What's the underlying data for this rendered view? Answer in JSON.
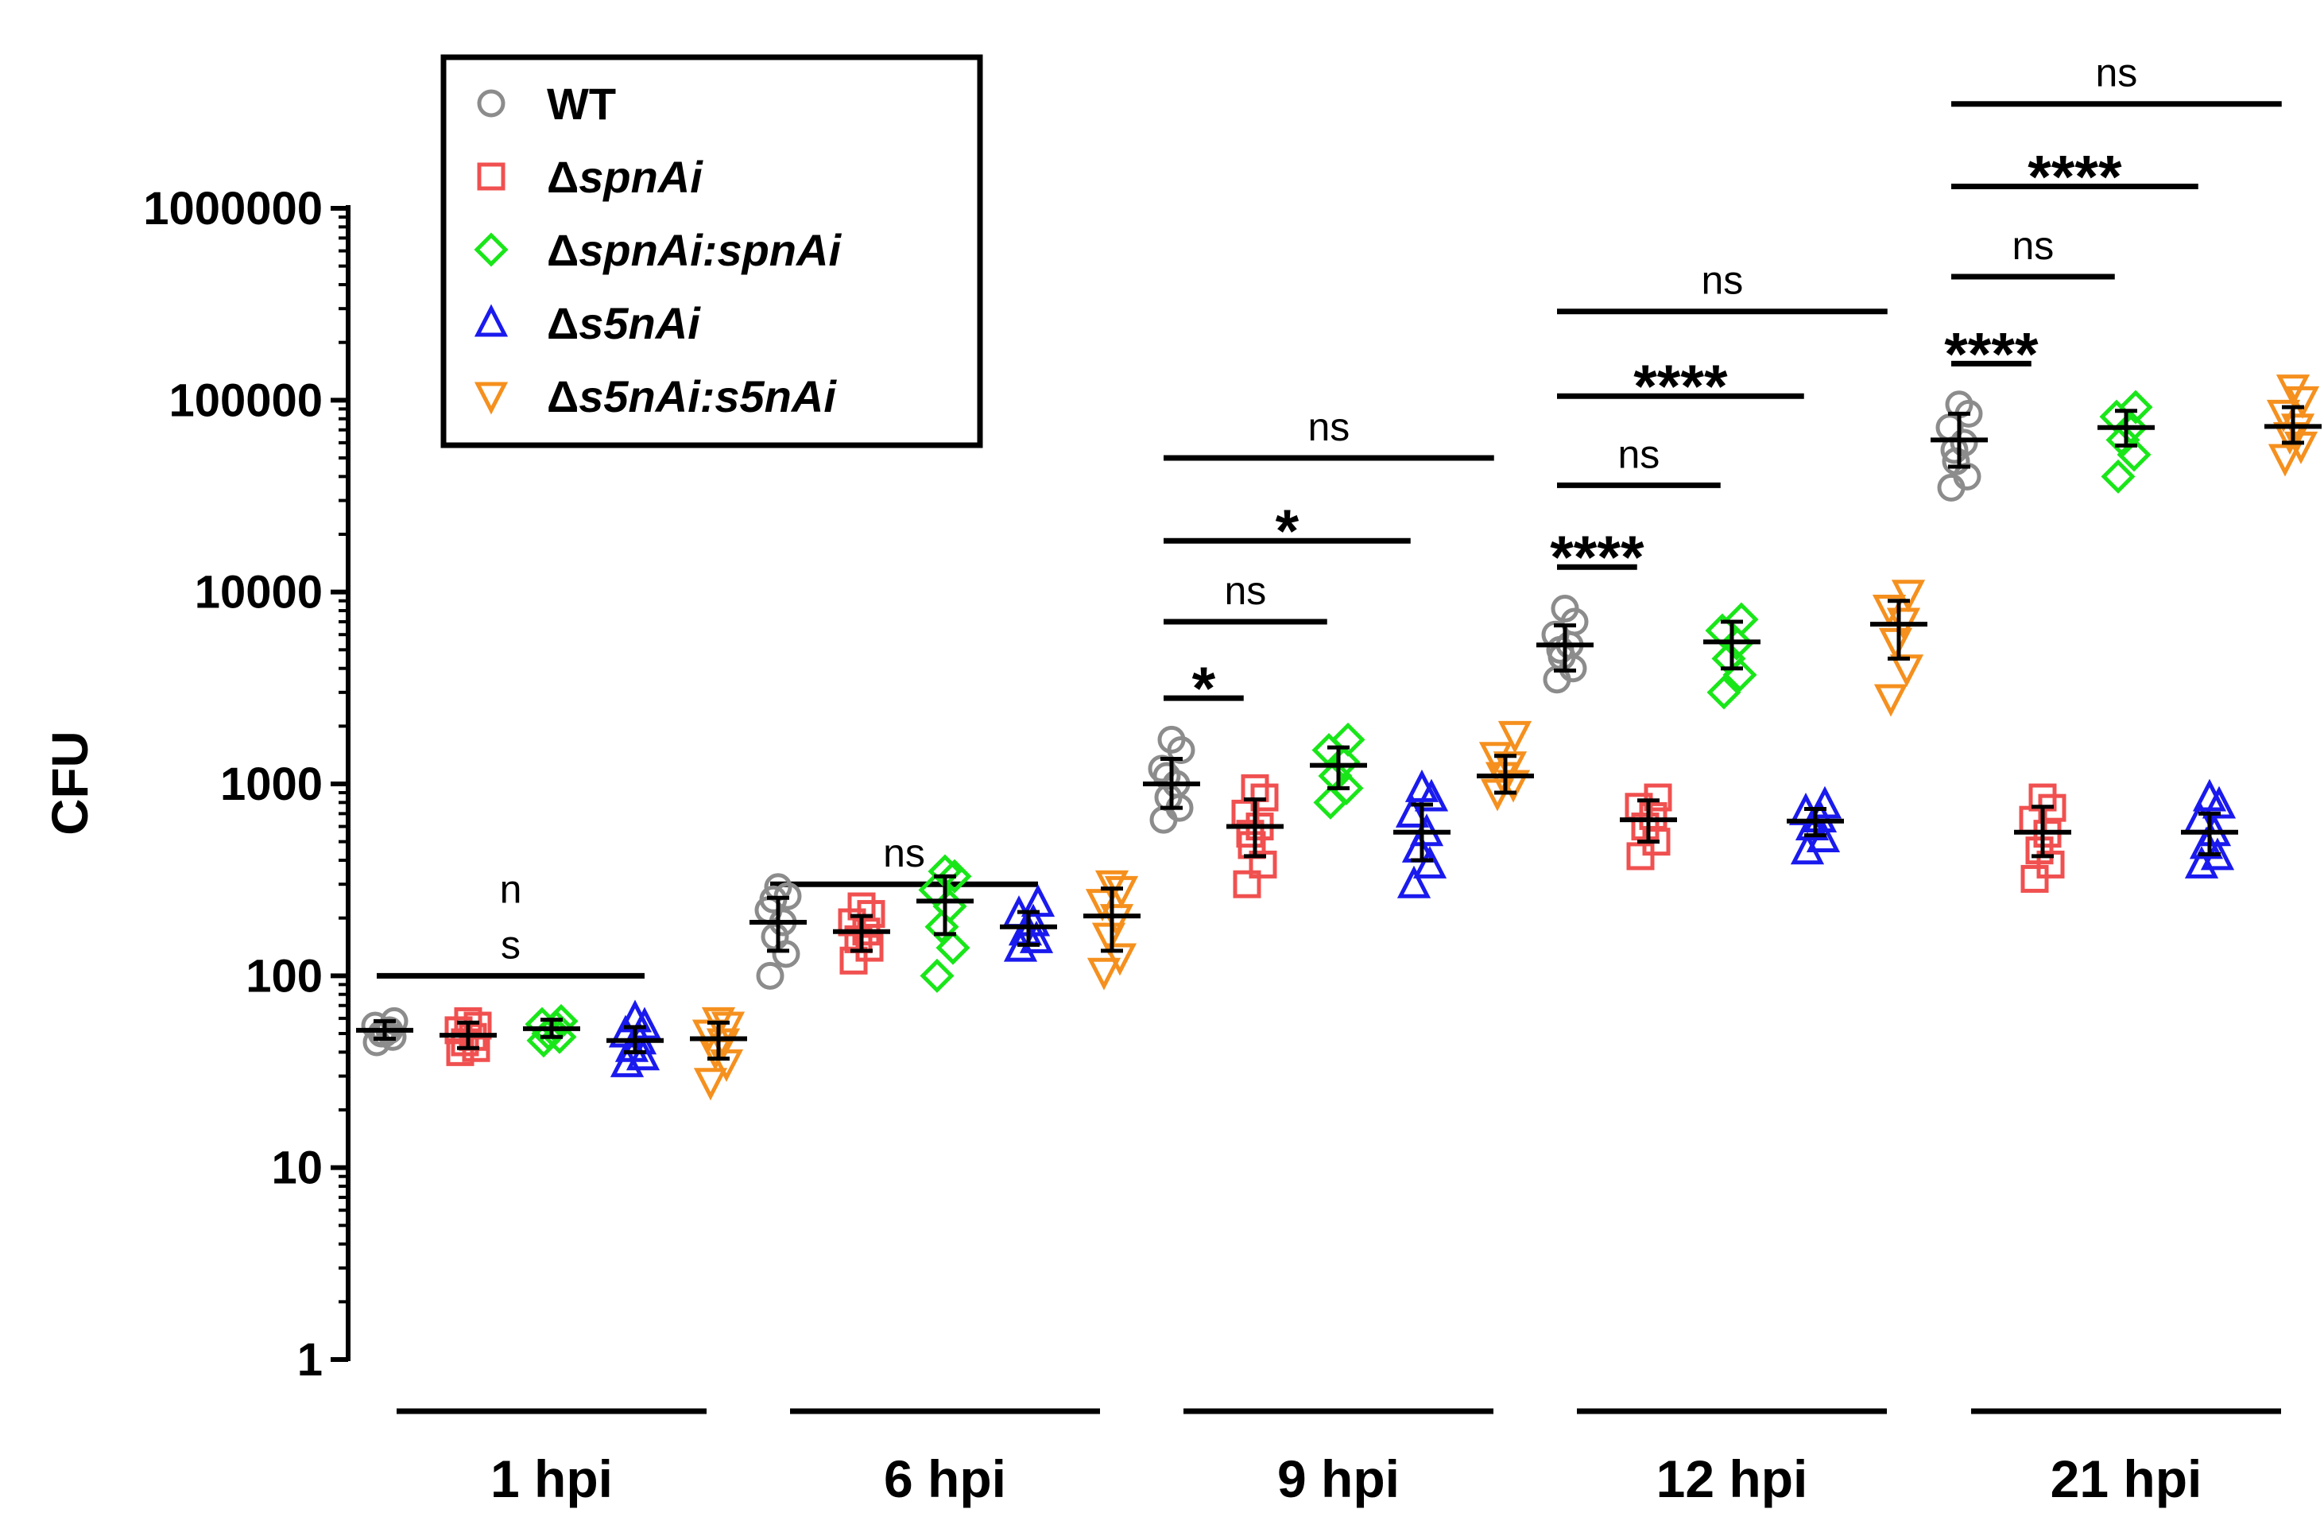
{
  "chart_data": {
    "type": "scatter",
    "ylabel": "CFU",
    "yscale": "log",
    "ylim": [
      1,
      1000000
    ],
    "yticks": [
      {
        "value": 1,
        "label": "1"
      },
      {
        "value": 10,
        "label": "10"
      },
      {
        "value": 100,
        "label": "100"
      },
      {
        "value": 1000,
        "label": "1000"
      },
      {
        "value": 10000,
        "label": "10000"
      },
      {
        "value": 100000,
        "label": "100000"
      },
      {
        "value": 1000000,
        "label": "1000000"
      }
    ],
    "legend_position": "top-left",
    "legend": [
      {
        "key": "wt",
        "prefix": "",
        "label": "WT",
        "marker": "circle",
        "color": "#8c8c8c"
      },
      {
        "key": "spn",
        "prefix": "Δ",
        "label": "spnAi",
        "marker": "square",
        "color": "#f05050"
      },
      {
        "key": "spnc",
        "prefix": "Δ",
        "label": "spnAi:spnAi",
        "marker": "diamond",
        "color": "#19e619"
      },
      {
        "key": "s5n",
        "prefix": "Δ",
        "label": "s5nAi",
        "marker": "triangle-up",
        "color": "#1a1aee"
      },
      {
        "key": "s5nc",
        "prefix": "Δ",
        "label": "s5nAi:s5nAi",
        "marker": "triangle-down",
        "color": "#f5901e"
      }
    ],
    "groups": [
      {
        "label": "1 hpi",
        "series": [
          {
            "key": "wt",
            "points": [
              45,
              48,
              50,
              52,
              55,
              58,
              50
            ],
            "mean": 52,
            "err": [
              47,
              58
            ]
          },
          {
            "key": "spn",
            "points": [
              40,
              42,
              45,
              48,
              52,
              55,
              58
            ],
            "mean": 49,
            "err": [
              42,
              57
            ]
          },
          {
            "key": "spnc",
            "points": [
              46,
              48,
              50,
              54,
              56,
              58
            ],
            "mean": 53,
            "err": [
              48,
              59
            ]
          },
          {
            "key": "s5n",
            "points": [
              35,
              38,
              42,
              46,
              50,
              55,
              60
            ],
            "mean": 46,
            "err": [
              40,
              54
            ]
          },
          {
            "key": "s5nc",
            "points": [
              28,
              35,
              40,
              45,
              50,
              55,
              58
            ],
            "mean": 47,
            "err": [
              37,
              57
            ]
          }
        ],
        "comparisons": [
          {
            "text_lines": [
              "n",
              "s"
            ],
            "style": "ns",
            "from": 0,
            "to": 3,
            "y": 100
          }
        ]
      },
      {
        "label": "6 hpi",
        "series": [
          {
            "key": "wt",
            "points": [
              100,
              130,
              160,
              190,
              220,
              260,
              290,
              250
            ],
            "mean": 190,
            "err": [
              135,
              255
            ]
          },
          {
            "key": "spn",
            "points": [
              120,
              140,
              155,
              170,
              190,
              210,
              230
            ],
            "mean": 170,
            "err": [
              135,
              205
            ]
          },
          {
            "key": "spnc",
            "points": [
              100,
              140,
              180,
              230,
              280,
              330,
              350
            ],
            "mean": 245,
            "err": [
              165,
              330
            ]
          },
          {
            "key": "s5n",
            "points": [
              140,
              155,
              170,
              190,
              210,
              240
            ],
            "mean": 180,
            "err": [
              145,
              215
            ]
          },
          {
            "key": "s5nc",
            "points": [
              105,
              125,
              160,
              200,
              240,
              280,
              300
            ],
            "mean": 205,
            "err": [
              135,
              285
            ]
          }
        ],
        "comparisons": [
          {
            "text_lines": [
              "ns"
            ],
            "style": "ns",
            "from": 0,
            "to": 3,
            "y": 300
          }
        ]
      },
      {
        "label": "9 hpi",
        "series": [
          {
            "key": "wt",
            "points": [
              650,
              750,
              850,
              1000,
              1200,
              1500,
              1700,
              1100
            ],
            "mean": 1000,
            "err": [
              750,
              1350
            ]
          },
          {
            "key": "spn",
            "points": [
              300,
              380,
              480,
              600,
              700,
              850,
              950,
              550
            ],
            "mean": 600,
            "err": [
              420,
              830
            ]
          },
          {
            "key": "spnc",
            "points": [
              800,
              950,
              1100,
              1300,
              1500,
              1700
            ],
            "mean": 1250,
            "err": [
              950,
              1550
            ]
          },
          {
            "key": "s5n",
            "points": [
              300,
              380,
              460,
              560,
              700,
              850,
              950
            ],
            "mean": 560,
            "err": [
              400,
              780
            ]
          },
          {
            "key": "s5nc",
            "points": [
              900,
              1000,
              1100,
              1250,
              1400,
              1800
            ],
            "mean": 1100,
            "err": [
              900,
              1400
            ]
          }
        ],
        "comparisons": [
          {
            "text_lines": [
              "*"
            ],
            "style": "star",
            "from": 0,
            "to": 0.75,
            "y": 2800
          },
          {
            "text_lines": [
              "ns"
            ],
            "style": "ns",
            "from": 0,
            "to": 1.75,
            "y": 7000
          },
          {
            "text_lines": [
              "*"
            ],
            "style": "star",
            "from": 0,
            "to": 2.75,
            "y": 18500
          },
          {
            "text_lines": [
              "ns"
            ],
            "style": "ns",
            "from": 0,
            "to": 3.75,
            "y": 50000
          }
        ]
      },
      {
        "label": "12 hpi",
        "series": [
          {
            "key": "wt",
            "points": [
              3500,
              4000,
              4600,
              5300,
              6000,
              7000,
              8200,
              5000
            ],
            "mean": 5300,
            "err": [
              3900,
              6700
            ]
          },
          {
            "key": "spn",
            "points": [
              420,
              500,
              600,
              680,
              760,
              850
            ],
            "mean": 650,
            "err": [
              500,
              820
            ]
          },
          {
            "key": "spnc",
            "points": [
              3000,
              3700,
              4500,
              5400,
              6300,
              7200
            ],
            "mean": 5500,
            "err": [
              4000,
              7000
            ]
          },
          {
            "key": "s5n",
            "points": [
              450,
              520,
              600,
              660,
              720,
              780
            ],
            "mean": 640,
            "err": [
              540,
              740
            ]
          },
          {
            "key": "s5nc",
            "points": [
              2800,
              4000,
              5500,
              7000,
              8200,
              9800
            ],
            "mean": 6800,
            "err": [
              4500,
              9000
            ]
          }
        ],
        "comparisons": [
          {
            "text_lines": [
              "****"
            ],
            "style": "star",
            "from": 0,
            "to": 0.75,
            "y": 13500
          },
          {
            "text_lines": [
              "ns"
            ],
            "style": "ns",
            "from": 0,
            "to": 1.75,
            "y": 36000
          },
          {
            "text_lines": [
              "****"
            ],
            "style": "star",
            "from": 0,
            "to": 2.75,
            "y": 105000
          },
          {
            "text_lines": [
              "ns"
            ],
            "style": "ns",
            "from": 0,
            "to": 3.75,
            "y": 290000
          }
        ]
      },
      {
        "label": "21 hpi",
        "series": [
          {
            "key": "wt",
            "points": [
              35000,
              40000,
              48000,
              60000,
              72000,
              85000,
              95000,
              55000
            ],
            "mean": 62000,
            "err": [
              45000,
              85000
            ]
          },
          {
            "key": "spn",
            "points": [
              320,
              380,
              450,
              550,
              650,
              750,
              850
            ],
            "mean": 560,
            "err": [
              420,
              760
            ]
          },
          {
            "key": "spnc",
            "points": [
              40000,
              52000,
              62000,
              72000,
              82000,
              92000
            ],
            "mean": 72000,
            "err": [
              58000,
              88000
            ]
          },
          {
            "key": "s5n",
            "points": [
              380,
              420,
              480,
              560,
              650,
              780,
              850
            ],
            "mean": 560,
            "err": [
              430,
              700
            ]
          },
          {
            "key": "s5nc",
            "points": [
              50000,
              58000,
              65000,
              72000,
              85000,
              100000,
              115000
            ],
            "mean": 73000,
            "err": [
              60000,
              92000
            ]
          }
        ],
        "comparisons": [
          {
            "text_lines": [
              "****"
            ],
            "style": "star",
            "from": 0,
            "to": 0.75,
            "y": 155000
          },
          {
            "text_lines": [
              "ns"
            ],
            "style": "ns",
            "from": 0,
            "to": 1.75,
            "y": 440000
          },
          {
            "text_lines": [
              "****"
            ],
            "style": "star",
            "from": 0,
            "to": 2.75,
            "y": 1300000
          },
          {
            "text_lines": [
              "ns"
            ],
            "style": "ns",
            "from": 0,
            "to": 3.75,
            "y": 3500000
          }
        ]
      }
    ]
  }
}
